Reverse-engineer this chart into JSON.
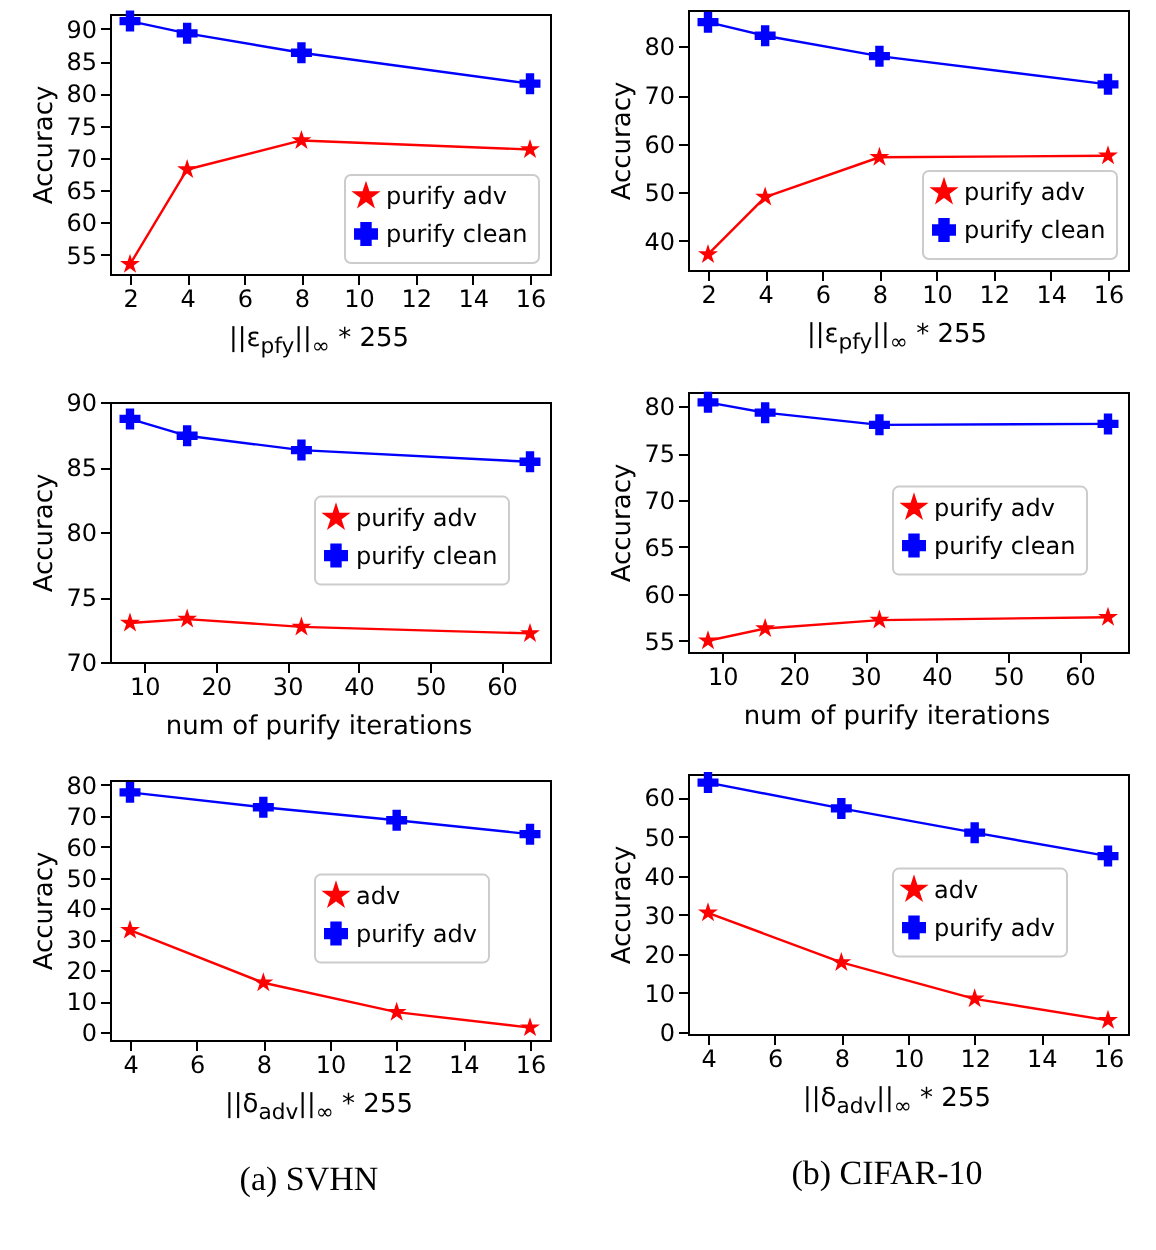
{
  "chart_data": [
    {
      "type": "line",
      "x": [
        2,
        4,
        8,
        16
      ],
      "xlabel": "||ε$_{pfy}$||$_{∞}$ * 255",
      "ylabel": "Accuracy",
      "xlim": [
        1.3,
        16.7
      ],
      "xticks": [
        2,
        4,
        6,
        8,
        10,
        12,
        14,
        16
      ],
      "ylim": [
        52,
        92.3
      ],
      "yticks": [
        55,
        60,
        65,
        70,
        75,
        80,
        85,
        90
      ],
      "grid": false,
      "legend": "bottom right",
      "series": [
        {
          "name": "purify adv",
          "color": "#ff0000",
          "marker": "star",
          "values": [
            53.5,
            68.2,
            72.7,
            71.3
          ]
        },
        {
          "name": "purify clean",
          "color": "#0000ff",
          "marker": "cross",
          "values": [
            91.2,
            89.3,
            86.3,
            81.5
          ]
        }
      ]
    },
    {
      "type": "line",
      "x": [
        2,
        4,
        8,
        16
      ],
      "xlabel": "||ε$_{pfy}$||$_{∞}$ * 255",
      "ylabel": "Accuracy",
      "xlim": [
        1.3,
        16.7
      ],
      "xticks": [
        2,
        4,
        6,
        8,
        10,
        12,
        14,
        16
      ],
      "ylim": [
        34,
        87.5
      ],
      "yticks": [
        40,
        50,
        60,
        70,
        80
      ],
      "grid": false,
      "legend": "bottom right",
      "series": [
        {
          "name": "purify adv",
          "color": "#ff0000",
          "marker": "star",
          "values": [
            37.2,
            49,
            57.2,
            57.5
          ]
        },
        {
          "name": "purify clean",
          "color": "#0000ff",
          "marker": "cross",
          "values": [
            85,
            82.2,
            78,
            72.2
          ]
        }
      ]
    },
    {
      "type": "line",
      "x": [
        8,
        16,
        32,
        64
      ],
      "xlabel": "num of purify iterations",
      "ylabel": "Accuracy",
      "xlim": [
        5.2,
        66.8
      ],
      "xticks": [
        10,
        20,
        30,
        40,
        50,
        60
      ],
      "ylim": [
        70,
        90
      ],
      "yticks": [
        70,
        75,
        80,
        85,
        90
      ],
      "grid": false,
      "legend": "right",
      "series": [
        {
          "name": "purify adv",
          "color": "#ff0000",
          "marker": "star",
          "values": [
            73,
            73.3,
            72.7,
            72.2
          ]
        },
        {
          "name": "purify clean",
          "color": "#0000ff",
          "marker": "cross",
          "values": [
            88.7,
            87.4,
            86.3,
            85.4
          ]
        }
      ]
    },
    {
      "type": "line",
      "x": [
        8,
        16,
        32,
        64
      ],
      "xlabel": "num of purify iterations",
      "ylabel": "Accuracy",
      "xlim": [
        5.2,
        66.8
      ],
      "xticks": [
        10,
        20,
        30,
        40,
        50,
        60
      ],
      "ylim": [
        53.8,
        81.5
      ],
      "yticks": [
        55,
        60,
        65,
        70,
        75,
        80
      ],
      "grid": false,
      "legend": "right",
      "series": [
        {
          "name": "purify adv",
          "color": "#ff0000",
          "marker": "star",
          "values": [
            55,
            56.3,
            57.2,
            57.5
          ]
        },
        {
          "name": "purify clean",
          "color": "#0000ff",
          "marker": "cross",
          "values": [
            80.4,
            79.3,
            78,
            78.1
          ]
        }
      ]
    },
    {
      "type": "line",
      "x": [
        4,
        8,
        12,
        16
      ],
      "xlabel": "||δ$_{adv}$||$_{∞}$ * 255",
      "ylabel": "Accuracy",
      "xlim": [
        3.4,
        16.6
      ],
      "xticks": [
        4,
        6,
        8,
        10,
        12,
        14,
        16
      ],
      "ylim": [
        -2.5,
        81.5
      ],
      "yticks": [
        0,
        10,
        20,
        30,
        40,
        50,
        60,
        70,
        80
      ],
      "grid": false,
      "legend": "right",
      "annotations": [
        "(a) SVHN"
      ],
      "series": [
        {
          "name": "adv",
          "color": "#ff0000",
          "marker": "star",
          "values": [
            33,
            16,
            6.5,
            1.5
          ]
        },
        {
          "name": "purify adv",
          "color": "#0000ff",
          "marker": "cross",
          "values": [
            77.5,
            72.7,
            68.5,
            64
          ]
        }
      ]
    },
    {
      "type": "line",
      "x": [
        4,
        8,
        12,
        16
      ],
      "xlabel": "||δ$_{adv}$||$_{∞}$ * 255",
      "ylabel": "Accuracy",
      "xlim": [
        3.4,
        16.6
      ],
      "xticks": [
        4,
        6,
        8,
        10,
        12,
        14,
        16
      ],
      "ylim": [
        -0.5,
        66
      ],
      "yticks": [
        0,
        10,
        20,
        30,
        40,
        50,
        60
      ],
      "grid": false,
      "legend": "right",
      "annotations": [
        "(b) CIFAR-10"
      ],
      "series": [
        {
          "name": "adv",
          "color": "#ff0000",
          "marker": "star",
          "values": [
            30.5,
            17.8,
            8.5,
            3
          ]
        },
        {
          "name": "purify adv",
          "color": "#0000ff",
          "marker": "cross",
          "values": [
            63.8,
            57.2,
            51,
            45
          ]
        }
      ]
    }
  ]
}
